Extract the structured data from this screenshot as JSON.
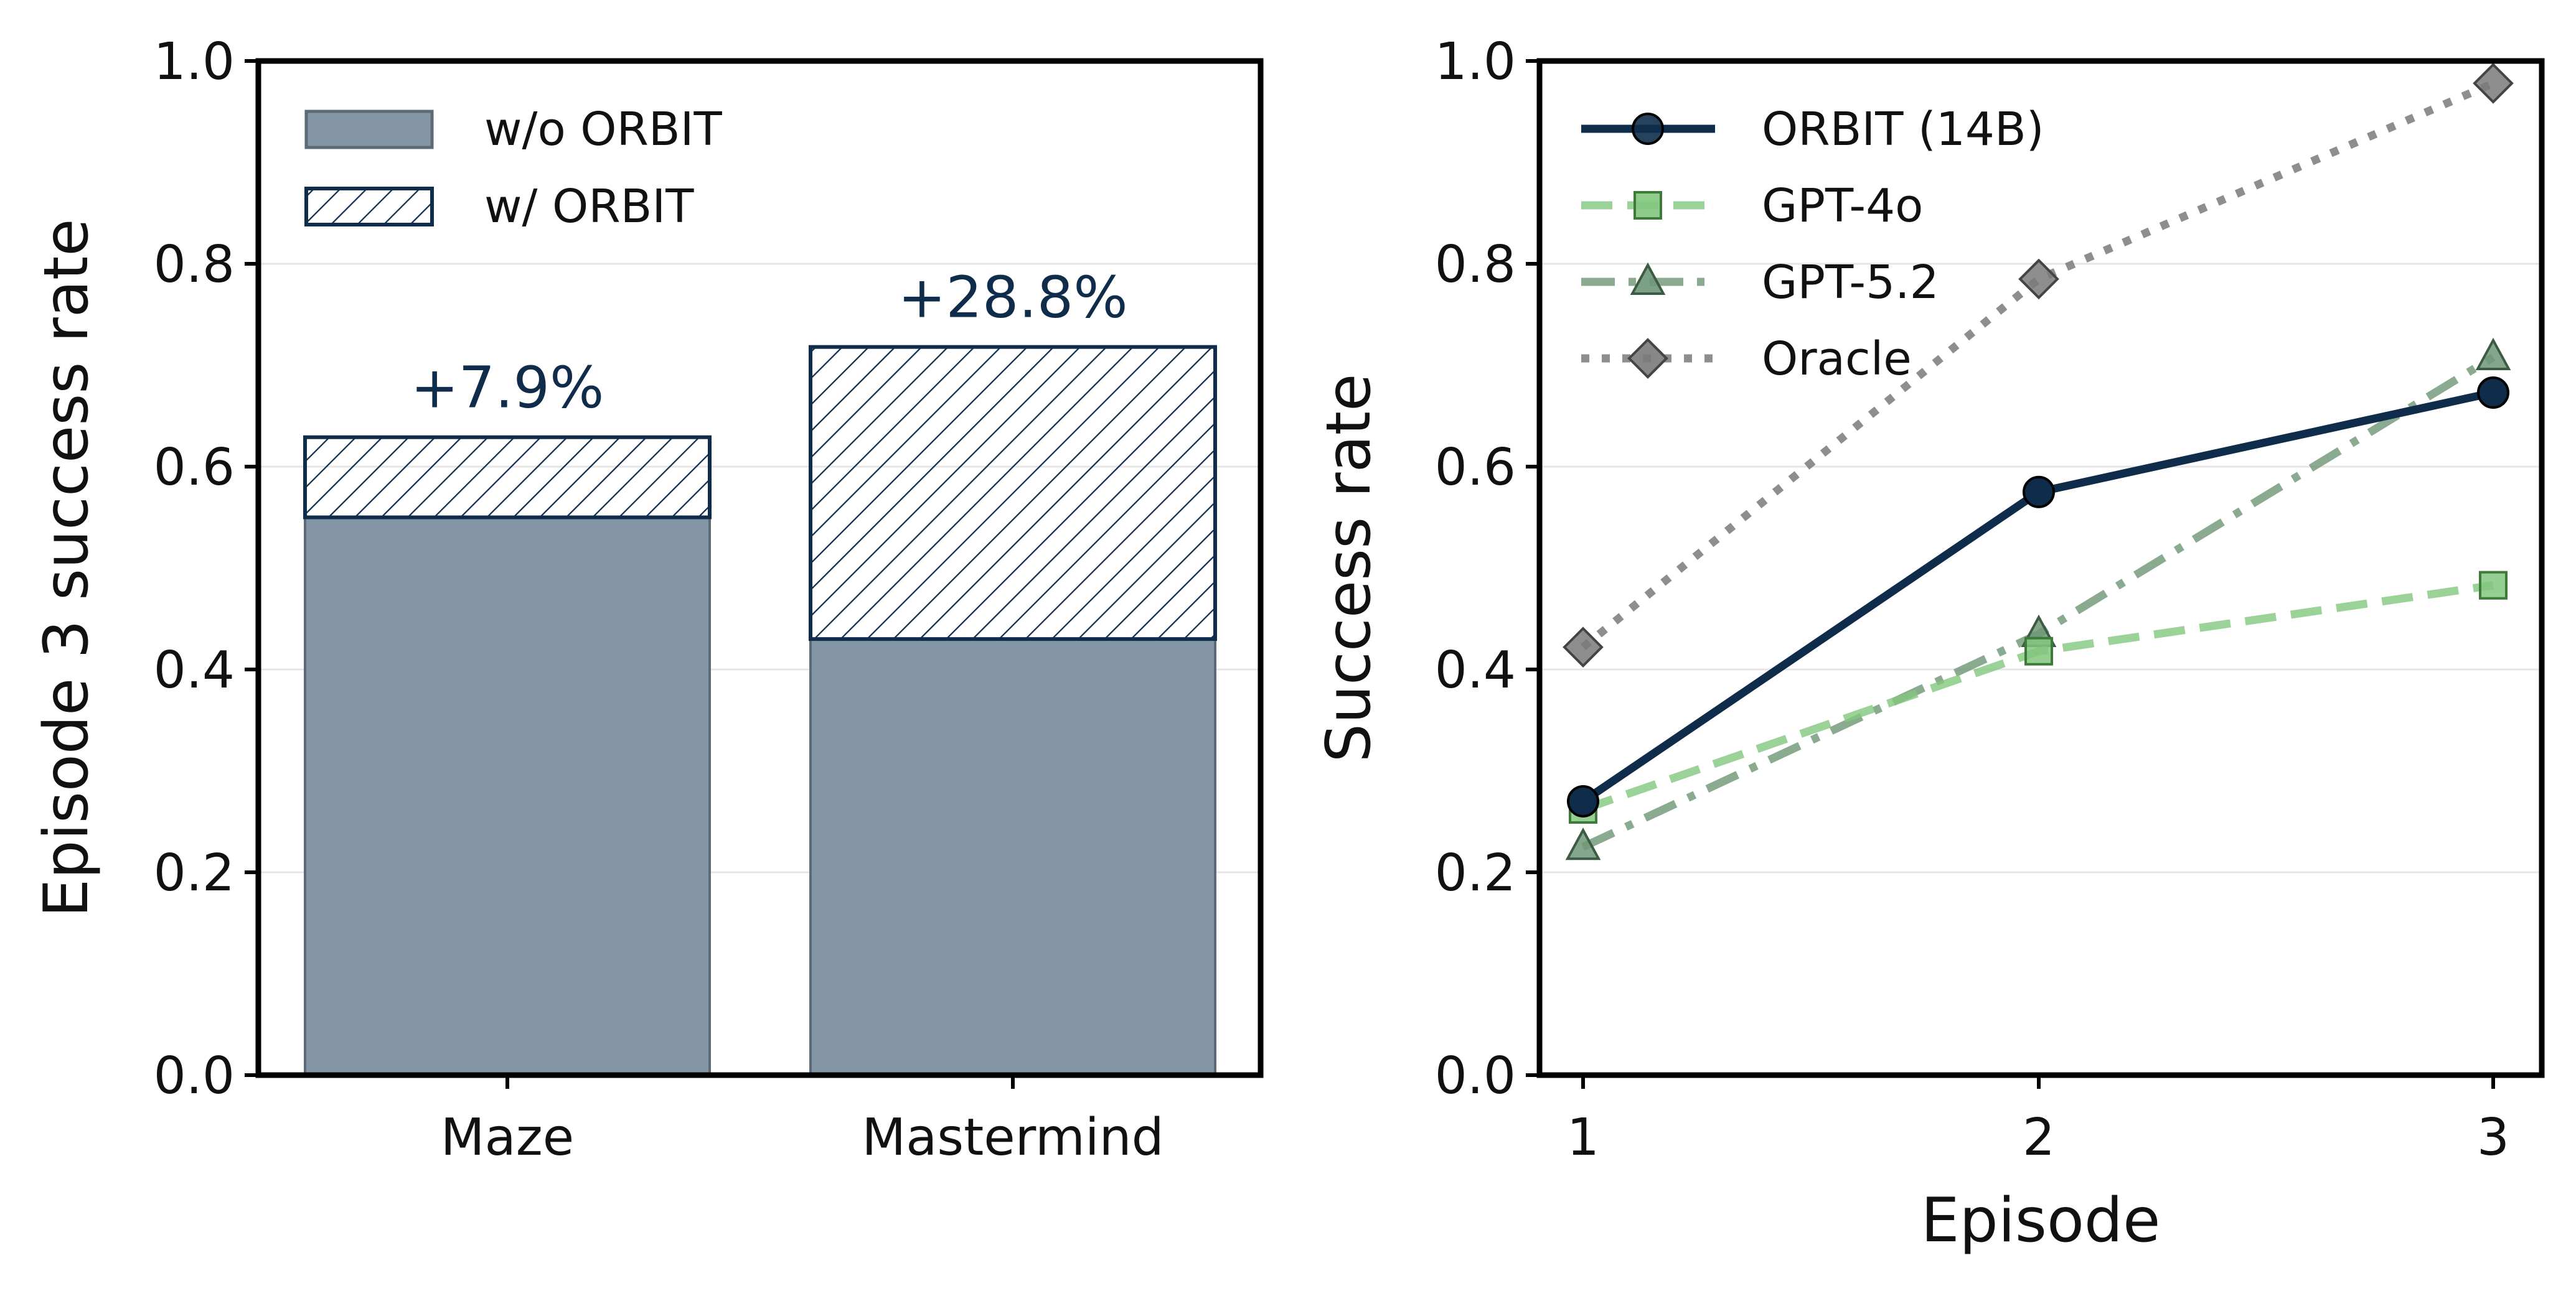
{
  "chart_data": [
    {
      "type": "bar",
      "stacked": true,
      "title": "",
      "xlabel": "",
      "ylabel": "Episode 3 success rate",
      "ylim": [
        0,
        1.0
      ],
      "yticks": [
        "0.0",
        "0.2",
        "0.4",
        "0.6",
        "0.8",
        "1.0"
      ],
      "categories": [
        "Maze",
        "Mastermind"
      ],
      "series": [
        {
          "name": "w/o ORBIT",
          "values": [
            0.55,
            0.43
          ],
          "color": "#8496a5",
          "hatch": false
        },
        {
          "name": "w/ ORBIT",
          "values": [
            0.079,
            0.288
          ],
          "color": "#0f2d4a",
          "hatch": true
        }
      ],
      "annotations": [
        "+7.9%",
        "+28.8%"
      ],
      "annotation_color": "#0f2d4a",
      "legend_position": "top-left",
      "grid": "horizontal"
    },
    {
      "type": "line",
      "title": "",
      "xlabel": "Episode",
      "ylabel": "Success rate",
      "x": [
        1,
        2,
        3
      ],
      "xticks": [
        "1",
        "2",
        "3"
      ],
      "ylim": [
        0,
        1.0
      ],
      "yticks": [
        "0.0",
        "0.2",
        "0.4",
        "0.6",
        "0.8",
        "1.0"
      ],
      "series": [
        {
          "name": "ORBIT (14B)",
          "values": [
            0.27,
            0.575,
            0.673
          ],
          "color": "#0f2d4a",
          "marker": "circle",
          "linestyle": "solid"
        },
        {
          "name": "GPT-4o",
          "values": [
            0.262,
            0.418,
            0.483
          ],
          "color": "#82c77e",
          "marker": "square",
          "linestyle": "dashed"
        },
        {
          "name": "GPT-5.2",
          "values": [
            0.225,
            0.435,
            0.708
          ],
          "color": "#6e9676",
          "marker": "triangle",
          "linestyle": "dashdot"
        },
        {
          "name": "Oracle",
          "values": [
            0.422,
            0.785,
            0.978
          ],
          "color": "#7a7a7a",
          "marker": "diamond",
          "linestyle": "dotted"
        }
      ],
      "legend_position": "top-left",
      "grid": "horizontal"
    }
  ]
}
